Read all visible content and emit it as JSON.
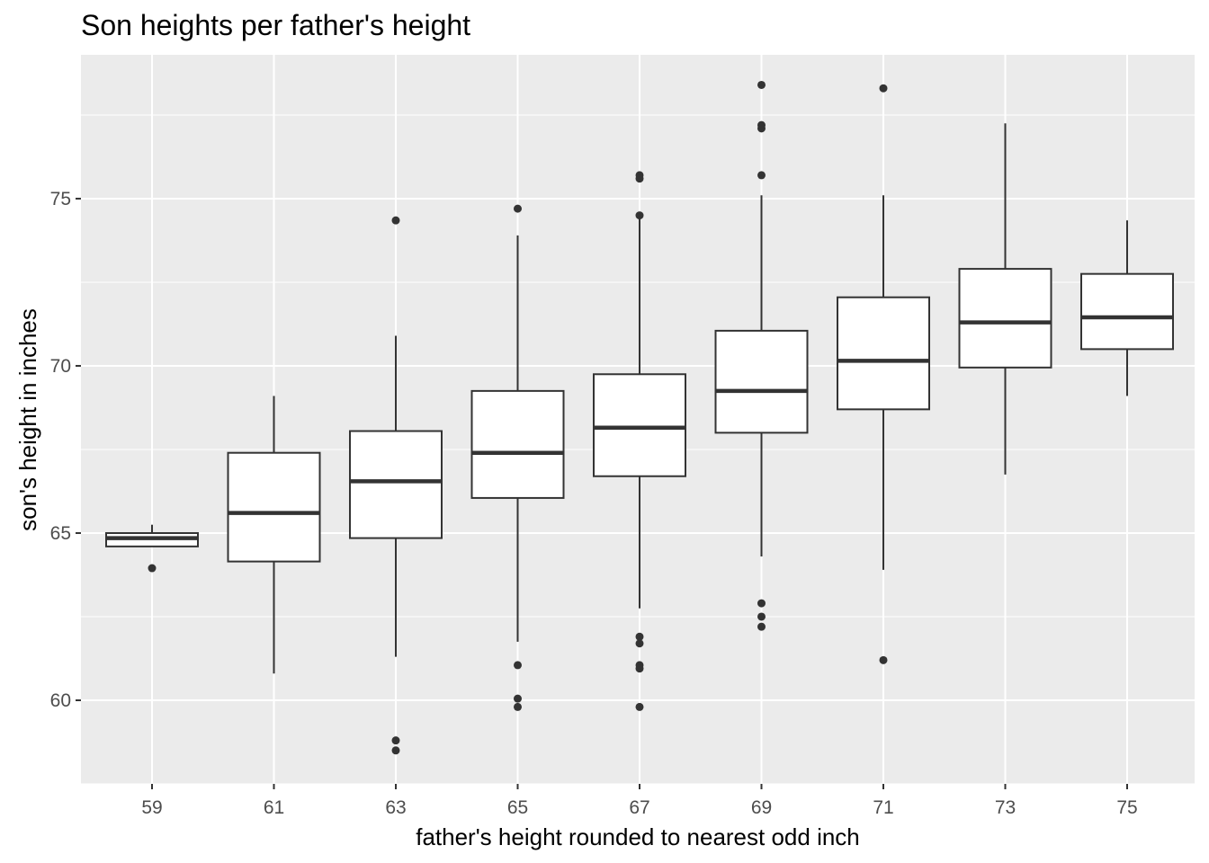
{
  "chart_data": {
    "type": "boxplot",
    "title": "Son heights per father's height",
    "xlabel": "father's height rounded to nearest odd inch",
    "ylabel": "son's height in inches",
    "categories": [
      "59",
      "61",
      "63",
      "65",
      "67",
      "69",
      "71",
      "73",
      "75"
    ],
    "y_ticks": [
      60,
      65,
      70,
      75
    ],
    "y_tick_labels": [
      "60",
      "65",
      "70",
      "75"
    ],
    "ylim": [
      57.5,
      79.3
    ],
    "grid": true,
    "boxes": [
      {
        "category": "59",
        "lower_whisker": 64.6,
        "q1": 64.6,
        "median": 64.85,
        "q3": 65.0,
        "upper_whisker": 65.25,
        "outliers": [
          63.95
        ]
      },
      {
        "category": "61",
        "lower_whisker": 60.8,
        "q1": 64.15,
        "median": 65.6,
        "q3": 67.4,
        "upper_whisker": 69.1,
        "outliers": []
      },
      {
        "category": "63",
        "lower_whisker": 61.3,
        "q1": 64.85,
        "median": 66.55,
        "q3": 68.05,
        "upper_whisker": 70.9,
        "outliers": [
          74.35,
          58.8,
          58.5
        ]
      },
      {
        "category": "65",
        "lower_whisker": 61.75,
        "q1": 66.05,
        "median": 67.4,
        "q3": 69.25,
        "upper_whisker": 73.9,
        "outliers": [
          74.7,
          61.05,
          60.05,
          59.8
        ]
      },
      {
        "category": "67",
        "lower_whisker": 62.75,
        "q1": 66.7,
        "median": 68.15,
        "q3": 69.75,
        "upper_whisker": 74.4,
        "outliers": [
          75.7,
          75.6,
          74.5,
          61.9,
          61.7,
          61.05,
          60.95,
          59.8
        ]
      },
      {
        "category": "69",
        "lower_whisker": 64.3,
        "q1": 68.0,
        "median": 69.25,
        "q3": 71.05,
        "upper_whisker": 75.1,
        "outliers": [
          78.4,
          77.2,
          77.1,
          75.7,
          62.9,
          62.5,
          62.2
        ]
      },
      {
        "category": "71",
        "lower_whisker": 63.9,
        "q1": 68.7,
        "median": 70.15,
        "q3": 72.05,
        "upper_whisker": 75.1,
        "outliers": [
          78.3,
          61.2
        ]
      },
      {
        "category": "73",
        "lower_whisker": 66.75,
        "q1": 69.95,
        "median": 71.3,
        "q3": 72.9,
        "upper_whisker": 77.25,
        "outliers": []
      },
      {
        "category": "75",
        "lower_whisker": 69.1,
        "q1": 70.5,
        "median": 71.45,
        "q3": 72.75,
        "upper_whisker": 74.35,
        "outliers": []
      }
    ],
    "colors": {
      "panel": "#ebebeb",
      "grid": "#ffffff",
      "box_fill": "#ffffff",
      "box_line": "#333333"
    }
  }
}
